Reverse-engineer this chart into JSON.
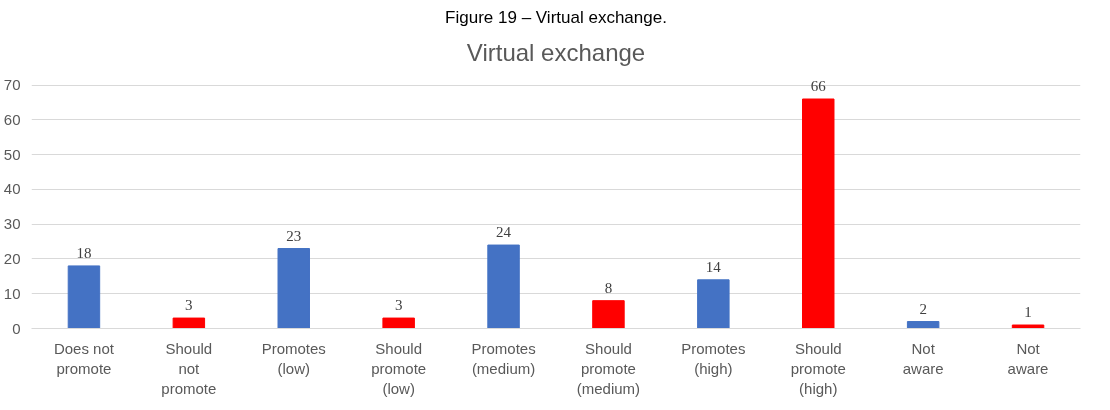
{
  "chart_data": {
    "type": "bar",
    "title": "Virtual exchange",
    "annotations": [
      "Figure 19 – Virtual exchange."
    ],
    "categories": [
      "Does not promote",
      "Should not promote",
      "Promotes (low)",
      "Should promote (low)",
      "Promotes (medium)",
      "Should promote (medium)",
      "Promotes (high)",
      "Should promote (high)",
      "Not aware",
      "Not aware"
    ],
    "values": [
      18,
      3,
      23,
      3,
      24,
      8,
      14,
      66,
      2,
      1
    ],
    "colors": [
      "#4472c4",
      "#ff0000",
      "#4472c4",
      "#ff0000",
      "#4472c4",
      "#ff0000",
      "#4472c4",
      "#ff0000",
      "#4472c4",
      "#ff0000"
    ],
    "ylim": [
      0,
      70
    ],
    "yticks": [
      0,
      10,
      20,
      30,
      40,
      50,
      60,
      70
    ],
    "grid": "y",
    "data_labels": true
  }
}
